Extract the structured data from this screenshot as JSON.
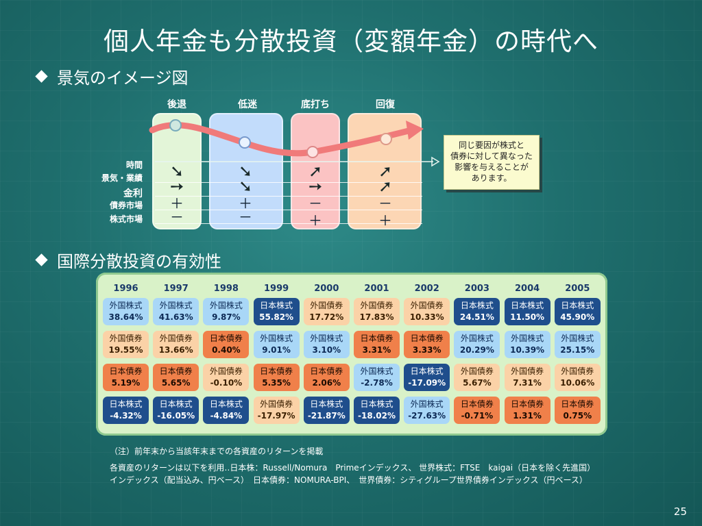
{
  "title": "個人年金も分散投資（変額年金）の時代へ",
  "bullet1": "景気のイメージ図",
  "bullet2": "国際分散投資の有効性",
  "phases": [
    "後退",
    "低迷",
    "底打ち",
    "回復"
  ],
  "row_labels": {
    "time": "時間",
    "economy": "景気・業績",
    "interest": "金利",
    "bond": "債券市場",
    "stock": "株式市場"
  },
  "bond_signs": [
    "＋",
    "＋",
    "－",
    "－"
  ],
  "stock_signs": [
    "－",
    "－",
    "＋",
    "＋"
  ],
  "callout": [
    "同じ要因が株式と",
    "債券に対して異なった",
    "影響を与えることが",
    "あります。"
  ],
  "colors": {
    "foreign_stock": "#a9d7f7",
    "japan_stock": "#1f4e8c",
    "foreign_bond": "#fbd2a7",
    "japan_bond": "#f0804a",
    "curve": "#f07a7a"
  },
  "returns_table": {
    "years": [
      "1996",
      "1997",
      "1998",
      "1999",
      "2000",
      "2001",
      "2002",
      "2003",
      "2004",
      "2005"
    ],
    "columns": [
      [
        {
          "asset": "外国株式",
          "value": "38.64%",
          "type": "fs"
        },
        {
          "asset": "外国債券",
          "value": "19.55%",
          "type": "fb"
        },
        {
          "asset": "日本債券",
          "value": "5.19%",
          "type": "jb"
        },
        {
          "asset": "日本株式",
          "value": "-4.32%",
          "type": "js"
        }
      ],
      [
        {
          "asset": "外国株式",
          "value": "41.63%",
          "type": "fs"
        },
        {
          "asset": "外国債券",
          "value": "13.66%",
          "type": "fb"
        },
        {
          "asset": "日本債券",
          "value": "5.65%",
          "type": "jb"
        },
        {
          "asset": "日本株式",
          "value": "-16.05%",
          "type": "js"
        }
      ],
      [
        {
          "asset": "外国株式",
          "value": "9.87%",
          "type": "fs"
        },
        {
          "asset": "日本債券",
          "value": "0.40%",
          "type": "jb"
        },
        {
          "asset": "外国債券",
          "value": "-0.10%",
          "type": "fb"
        },
        {
          "asset": "日本株式",
          "value": "-4.84%",
          "type": "js"
        }
      ],
      [
        {
          "asset": "日本株式",
          "value": "55.82%",
          "type": "js"
        },
        {
          "asset": "外国株式",
          "value": "9.01%",
          "type": "fs"
        },
        {
          "asset": "日本債券",
          "value": "5.35%",
          "type": "jb"
        },
        {
          "asset": "外国債券",
          "value": "-17.97%",
          "type": "fb"
        }
      ],
      [
        {
          "asset": "外国債券",
          "value": "17.72%",
          "type": "fb"
        },
        {
          "asset": "外国株式",
          "value": "3.10%",
          "type": "fs"
        },
        {
          "asset": "日本債券",
          "value": "2.06%",
          "type": "jb"
        },
        {
          "asset": "日本株式",
          "value": "-21.87%",
          "type": "js"
        }
      ],
      [
        {
          "asset": "外国債券",
          "value": "17.83%",
          "type": "fb"
        },
        {
          "asset": "日本債券",
          "value": "3.31%",
          "type": "jb"
        },
        {
          "asset": "外国株式",
          "value": "-2.78%",
          "type": "fs"
        },
        {
          "asset": "日本株式",
          "value": "-18.02%",
          "type": "js"
        }
      ],
      [
        {
          "asset": "外国債券",
          "value": "10.33%",
          "type": "fb"
        },
        {
          "asset": "日本債券",
          "value": "3.33%",
          "type": "jb"
        },
        {
          "asset": "日本株式",
          "value": "-17.09%",
          "type": "js"
        },
        {
          "asset": "外国株式",
          "value": "-27.63%",
          "type": "fs"
        }
      ],
      [
        {
          "asset": "日本株式",
          "value": "24.51%",
          "type": "js"
        },
        {
          "asset": "外国株式",
          "value": "20.29%",
          "type": "fs"
        },
        {
          "asset": "外国債券",
          "value": "5.67%",
          "type": "fb"
        },
        {
          "asset": "日本債券",
          "value": "-0.71%",
          "type": "jb"
        }
      ],
      [
        {
          "asset": "日本株式",
          "value": "11.50%",
          "type": "js"
        },
        {
          "asset": "外国株式",
          "value": "10.39%",
          "type": "fs"
        },
        {
          "asset": "外国債券",
          "value": "7.31%",
          "type": "fb"
        },
        {
          "asset": "日本債券",
          "value": "1.31%",
          "type": "jb"
        }
      ],
      [
        {
          "asset": "日本株式",
          "value": "45.90%",
          "type": "js"
        },
        {
          "asset": "外国株式",
          "value": "25.15%",
          "type": "fs"
        },
        {
          "asset": "外国債券",
          "value": "10.06%",
          "type": "fb"
        },
        {
          "asset": "日本債券",
          "value": "0.75%",
          "type": "jb"
        }
      ]
    ]
  },
  "note1": "（注）前年末から当該年末までの各資産のリターンを掲載",
  "note2": "各資産のリターンは以下を利用‥日本株：Russell/Nomura　Primeインデックス、 世界株式：FTSE　kaigai（日本を除く先進国）インデックス（配当込み、円ベース）　日本債券：NOMURA-BPI、　世界債券：シティグループ世界債券インデックス（円ベース）",
  "page_number": "25"
}
